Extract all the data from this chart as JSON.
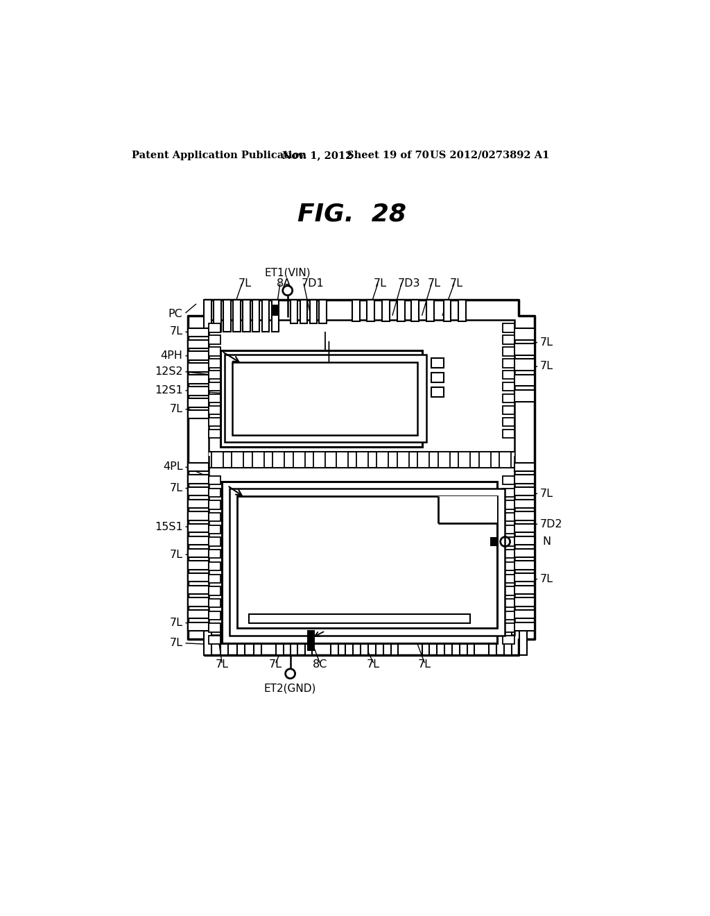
{
  "bg": "#ffffff",
  "header1": "Patent Application Publication",
  "header2": "Nov. 1, 2012",
  "header3": "Sheet 19 of 70",
  "header4": "US 2012/0273892 A1",
  "fig_title": "FIG.  28",
  "label_fs": 11.5,
  "title_fs": 26
}
